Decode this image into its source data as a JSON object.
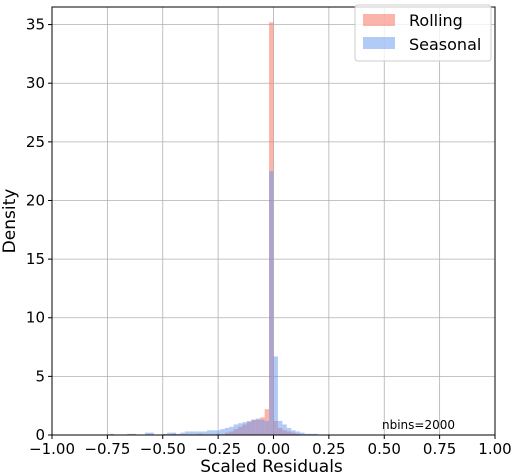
{
  "chart_data": {
    "type": "histogram",
    "xlabel": "Scaled Residuals",
    "ylabel": "Density",
    "xlim": [
      -1.0,
      1.0
    ],
    "ylim": [
      0,
      36.5
    ],
    "xticks": [
      "−1.00",
      "−0.75",
      "−0.50",
      "−0.25",
      "0.00",
      "0.25",
      "0.50",
      "0.75",
      "1.00"
    ],
    "xtick_values": [
      -1.0,
      -0.75,
      -0.5,
      -0.25,
      0.0,
      0.25,
      0.5,
      0.75,
      1.0
    ],
    "yticks": [
      "0",
      "5",
      "10",
      "15",
      "20",
      "25",
      "30",
      "35"
    ],
    "ytick_values": [
      0,
      5,
      10,
      15,
      20,
      25,
      30,
      35
    ],
    "grid": true,
    "legend_position": "top-right",
    "annotation": "nbins=2000",
    "bin_width": 0.02,
    "series": [
      {
        "name": "Rolling",
        "color": "#fa8072",
        "opacity": 0.6,
        "bins": [
          [
            -0.64,
            0.1
          ],
          [
            -0.46,
            0.1
          ],
          [
            -0.34,
            0.1
          ],
          [
            -0.26,
            0.1
          ],
          [
            -0.22,
            0.2
          ],
          [
            -0.2,
            0.3
          ],
          [
            -0.18,
            0.5
          ],
          [
            -0.16,
            0.7
          ],
          [
            -0.14,
            0.9
          ],
          [
            -0.12,
            1.1
          ],
          [
            -0.1,
            1.3
          ],
          [
            -0.08,
            1.3
          ],
          [
            -0.06,
            1.5
          ],
          [
            -0.04,
            2.2
          ],
          [
            -0.02,
            35.2
          ],
          [
            0.0,
            1.2
          ],
          [
            0.02,
            0.6
          ],
          [
            0.04,
            0.4
          ],
          [
            0.06,
            0.3
          ],
          [
            0.08,
            0.2
          ],
          [
            0.1,
            0.1
          ]
        ]
      },
      {
        "name": "Seasonal",
        "color": "#6495ed",
        "opacity": 0.5,
        "bins": [
          [
            -0.74,
            0.1
          ],
          [
            -0.66,
            0.1
          ],
          [
            -0.58,
            0.2
          ],
          [
            -0.56,
            0.2
          ],
          [
            -0.5,
            0.1
          ],
          [
            -0.48,
            0.2
          ],
          [
            -0.46,
            0.2
          ],
          [
            -0.44,
            0.1
          ],
          [
            -0.42,
            0.2
          ],
          [
            -0.4,
            0.3
          ],
          [
            -0.38,
            0.3
          ],
          [
            -0.36,
            0.3
          ],
          [
            -0.34,
            0.3
          ],
          [
            -0.32,
            0.3
          ],
          [
            -0.3,
            0.4
          ],
          [
            -0.28,
            0.4
          ],
          [
            -0.26,
            0.4
          ],
          [
            -0.24,
            0.5
          ],
          [
            -0.22,
            0.6
          ],
          [
            -0.2,
            0.7
          ],
          [
            -0.18,
            0.9
          ],
          [
            -0.16,
            1.0
          ],
          [
            -0.14,
            1.1
          ],
          [
            -0.12,
            1.2
          ],
          [
            -0.1,
            1.3
          ],
          [
            -0.08,
            1.4
          ],
          [
            -0.06,
            1.3
          ],
          [
            -0.04,
            1.2
          ],
          [
            -0.02,
            22.5
          ],
          [
            0.0,
            6.7
          ],
          [
            0.02,
            1.2
          ],
          [
            0.04,
            0.9
          ],
          [
            0.06,
            0.6
          ],
          [
            0.08,
            0.4
          ],
          [
            0.1,
            0.3
          ],
          [
            0.12,
            0.2
          ],
          [
            0.14,
            0.1
          ],
          [
            0.16,
            0.1
          ],
          [
            0.18,
            0.1
          ]
        ]
      }
    ]
  }
}
